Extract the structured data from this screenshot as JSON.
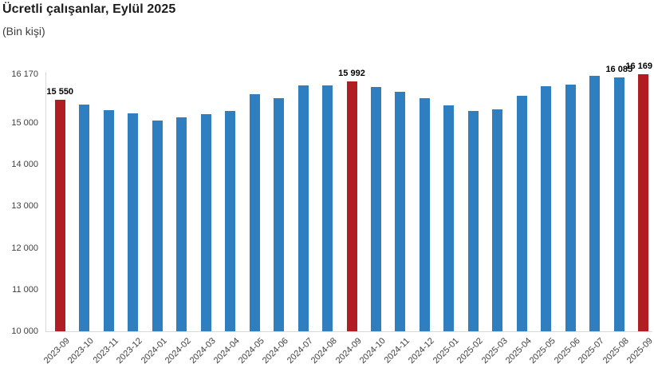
{
  "header": {
    "title": "Ücretli çalışanlar, Eylül 2025",
    "subtitle": "(Bin kişi)"
  },
  "colors": {
    "background": "#ffffff",
    "bar": "#2f7ec0",
    "bar_highlight": "#b01e24",
    "axis_line": "#d9d9d9",
    "tick_text": "#404040",
    "title_text": "#1c1c1c",
    "value_label_text": "#000000"
  },
  "chart_data": {
    "type": "bar",
    "title": "Ücretli çalışanlar, Eylül 2025",
    "subtitle": "(Bin kişi)",
    "xlabel": "",
    "ylabel": "Bin kişi",
    "categories": [
      "2023-09",
      "2023-10",
      "2023-11",
      "2023-12",
      "2024-01",
      "2024-02",
      "2024-03",
      "2024-04",
      "2024-05",
      "2024-06",
      "2024-07",
      "2024-08",
      "2024-09",
      "2024-10",
      "2024-11",
      "2024-12",
      "2025-01",
      "2025-02",
      "2025-03",
      "2025-04",
      "2025-05",
      "2025-06",
      "2025-07",
      "2025-08",
      "2025-09"
    ],
    "values": [
      15550,
      15450,
      15310,
      15230,
      15060,
      15130,
      15210,
      15290,
      15690,
      15600,
      15910,
      15895,
      15992,
      15855,
      15740,
      15590,
      15420,
      15290,
      15320,
      15660,
      15880,
      15920,
      16130,
      16085,
      16169
    ],
    "highlight_indices": [
      0,
      12,
      24
    ],
    "highlight_months": [
      "2023-09",
      "2024-09",
      "2025-09"
    ],
    "data_labels": [
      {
        "index": 0,
        "text": "15 550"
      },
      {
        "index": 12,
        "text": "15 992"
      },
      {
        "index": 23,
        "text": "16 085"
      },
      {
        "index": 24,
        "text": "16 169"
      }
    ],
    "ylim": [
      10000,
      16170
    ],
    "yticks": [
      {
        "value": 16170,
        "label": "16 170"
      },
      {
        "value": 15000,
        "label": "15 000"
      },
      {
        "value": 14000,
        "label": "14 000"
      },
      {
        "value": 13000,
        "label": "13 000"
      },
      {
        "value": 12000,
        "label": "12 000"
      },
      {
        "value": 11000,
        "label": "11 000"
      },
      {
        "value": 10000,
        "label": "10 000"
      }
    ],
    "grid": false,
    "legend": "none",
    "x_label_rotation": -45
  }
}
